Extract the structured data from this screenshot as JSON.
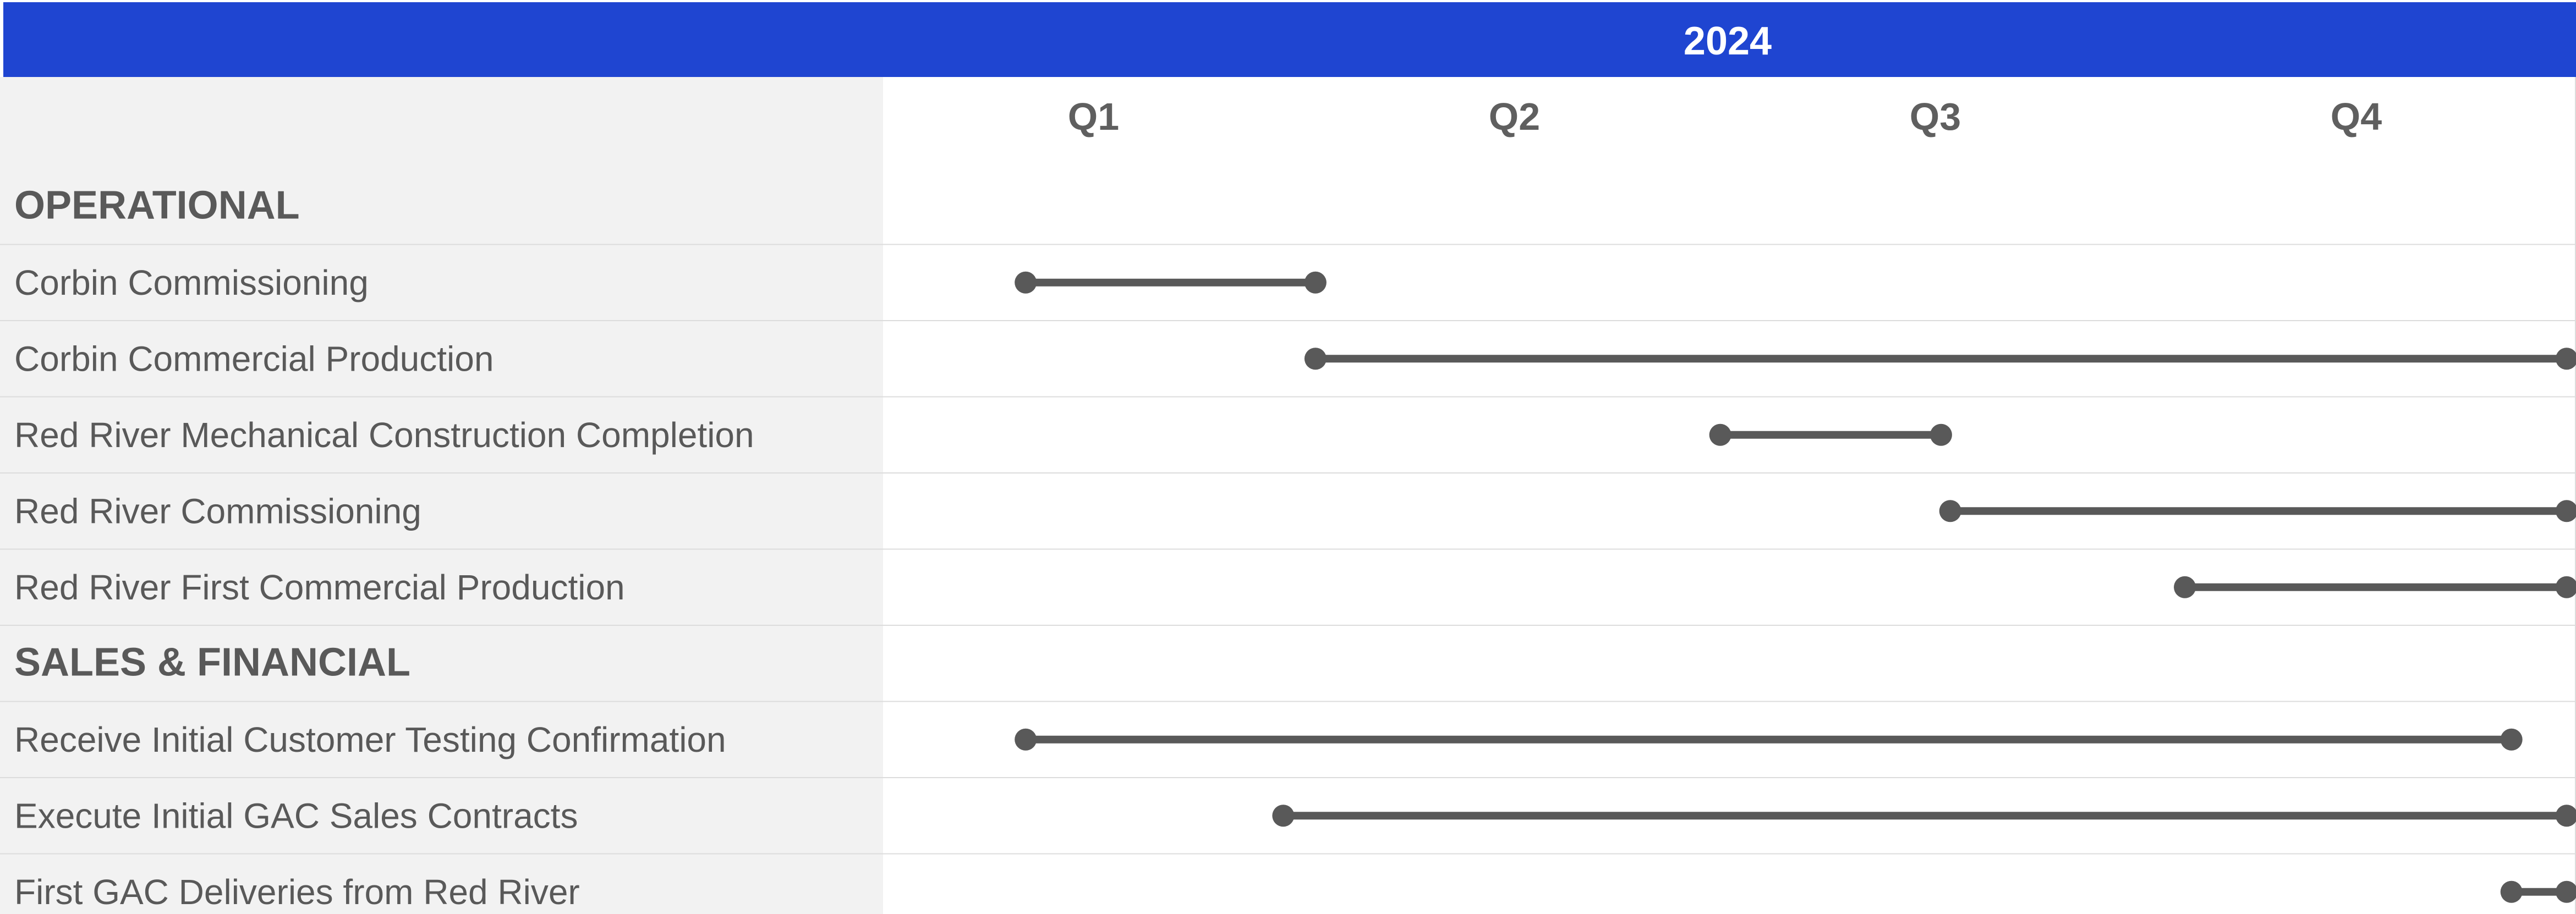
{
  "chart_data": {
    "type": "gantt",
    "title": "",
    "year_label": "2024",
    "x_range": [
      "2024-01-01",
      "2025-01-01"
    ],
    "quarters": [
      "Q1",
      "Q2",
      "Q3",
      "Q4"
    ],
    "colors": {
      "header_bar": "#1f45d1",
      "label_panel": "#f2f2f2",
      "bar": "#595959",
      "text": "#595959",
      "divider": "#dcdcdc"
    },
    "rows": [
      {
        "label": "OPERATIONAL",
        "is_section": true
      },
      {
        "label": "Corbin Commissioning",
        "is_section": false,
        "start": "2024-02-01",
        "end": "2024-04-04"
      },
      {
        "label": "Corbin Commercial Production",
        "is_section": false,
        "start": "2024-04-04",
        "end": "2025-01-01"
      },
      {
        "label": "Red River Mechanical Construction Completion",
        "is_section": false,
        "start": "2024-07-01",
        "end": "2024-08-18"
      },
      {
        "label": "Red River Commissioning",
        "is_section": false,
        "start": "2024-08-20",
        "end": "2025-01-01"
      },
      {
        "label": "Red River First Commercial Production",
        "is_section": false,
        "start": "2024-10-10",
        "end": "2025-01-01"
      },
      {
        "label": "SALES & FINANCIAL",
        "is_section": true
      },
      {
        "label": "Receive Initial Customer Testing Confirmation",
        "is_section": false,
        "start": "2024-02-01",
        "end": "2024-12-20"
      },
      {
        "label": "Execute Initial GAC Sales Contracts",
        "is_section": false,
        "start": "2024-03-28",
        "end": "2025-01-01"
      },
      {
        "label": "First GAC Deliveries from Red River",
        "is_section": false,
        "start": "2024-12-20",
        "end": "2025-01-01"
      }
    ]
  }
}
